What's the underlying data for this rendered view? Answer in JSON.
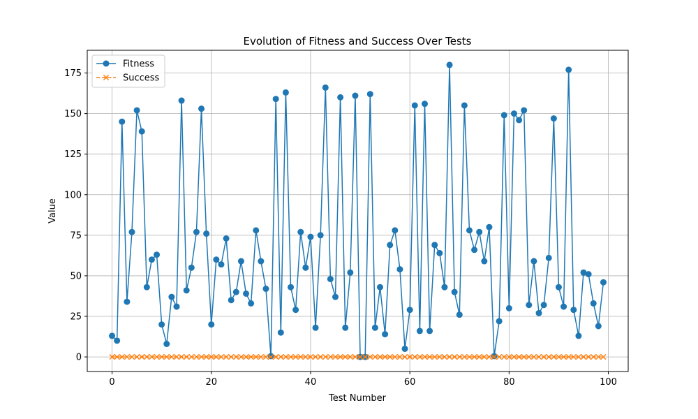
{
  "chart_data": {
    "type": "line",
    "title": "Evolution of Fitness and Success Over Tests",
    "xlabel": "Test Number",
    "ylabel": "Value",
    "xlim": [
      -5,
      104
    ],
    "ylim": [
      -9,
      189
    ],
    "xticks": [
      0,
      20,
      40,
      60,
      80,
      100
    ],
    "yticks": [
      0,
      25,
      50,
      75,
      100,
      125,
      150,
      175
    ],
    "grid": true,
    "legend_position": "top-left",
    "x": [
      0,
      1,
      2,
      3,
      4,
      5,
      6,
      7,
      8,
      9,
      10,
      11,
      12,
      13,
      14,
      15,
      16,
      17,
      18,
      19,
      20,
      21,
      22,
      23,
      24,
      25,
      26,
      27,
      28,
      29,
      30,
      31,
      32,
      33,
      34,
      35,
      36,
      37,
      38,
      39,
      40,
      41,
      42,
      43,
      44,
      45,
      46,
      47,
      48,
      49,
      50,
      51,
      52,
      53,
      54,
      55,
      56,
      57,
      58,
      59,
      60,
      61,
      62,
      63,
      64,
      65,
      66,
      67,
      68,
      69,
      70,
      71,
      72,
      73,
      74,
      75,
      76,
      77,
      78,
      79,
      80,
      81,
      82,
      83,
      84,
      85,
      86,
      87,
      88,
      89,
      90,
      91,
      92,
      93,
      94,
      95,
      96,
      97,
      98,
      99
    ],
    "series": [
      {
        "name": "Fitness",
        "color": "#1f77b4",
        "marker": "circle",
        "linestyle": "solid",
        "values": [
          13,
          10,
          145,
          34,
          77,
          152,
          139,
          43,
          60,
          63,
          20,
          8,
          37,
          31,
          158,
          41,
          55,
          77,
          153,
          76,
          20,
          60,
          57,
          73,
          35,
          40,
          59,
          39,
          33,
          78,
          59,
          42,
          0.5,
          159,
          15,
          163,
          43,
          29,
          77,
          55,
          74,
          18,
          75,
          166,
          48,
          37,
          160,
          18,
          52,
          161,
          0,
          0,
          162,
          18,
          43,
          14,
          69,
          78,
          54,
          5,
          29,
          155,
          16,
          156,
          16,
          69,
          64,
          43,
          180,
          40,
          26,
          155,
          78,
          66,
          77,
          59,
          80,
          0.5,
          22,
          149,
          30,
          150,
          146,
          152,
          32,
          59,
          27,
          32,
          61,
          147,
          43,
          31,
          177,
          29,
          13,
          52,
          51,
          33,
          19,
          46
        ]
      },
      {
        "name": "Success",
        "color": "#ff7f0e",
        "marker": "x",
        "linestyle": "dashed",
        "values": [
          0,
          0,
          0,
          0,
          0,
          0,
          0,
          0,
          0,
          0,
          0,
          0,
          0,
          0,
          0,
          0,
          0,
          0,
          0,
          0,
          0,
          0,
          0,
          0,
          0,
          0,
          0,
          0,
          0,
          0,
          0,
          0,
          0,
          0,
          0,
          0,
          0,
          0,
          0,
          0,
          0,
          0,
          0,
          0,
          0,
          0,
          0,
          0,
          0,
          0,
          0,
          0,
          0,
          0,
          0,
          0,
          0,
          0,
          0,
          0,
          0,
          0,
          0,
          0,
          0,
          0,
          0,
          0,
          0,
          0,
          0,
          0,
          0,
          0,
          0,
          0,
          0,
          0,
          0,
          0,
          0,
          0,
          0,
          0,
          0,
          0,
          0,
          0,
          0,
          0,
          0,
          0,
          0,
          0,
          0,
          0,
          0,
          0,
          0,
          0
        ]
      }
    ]
  }
}
